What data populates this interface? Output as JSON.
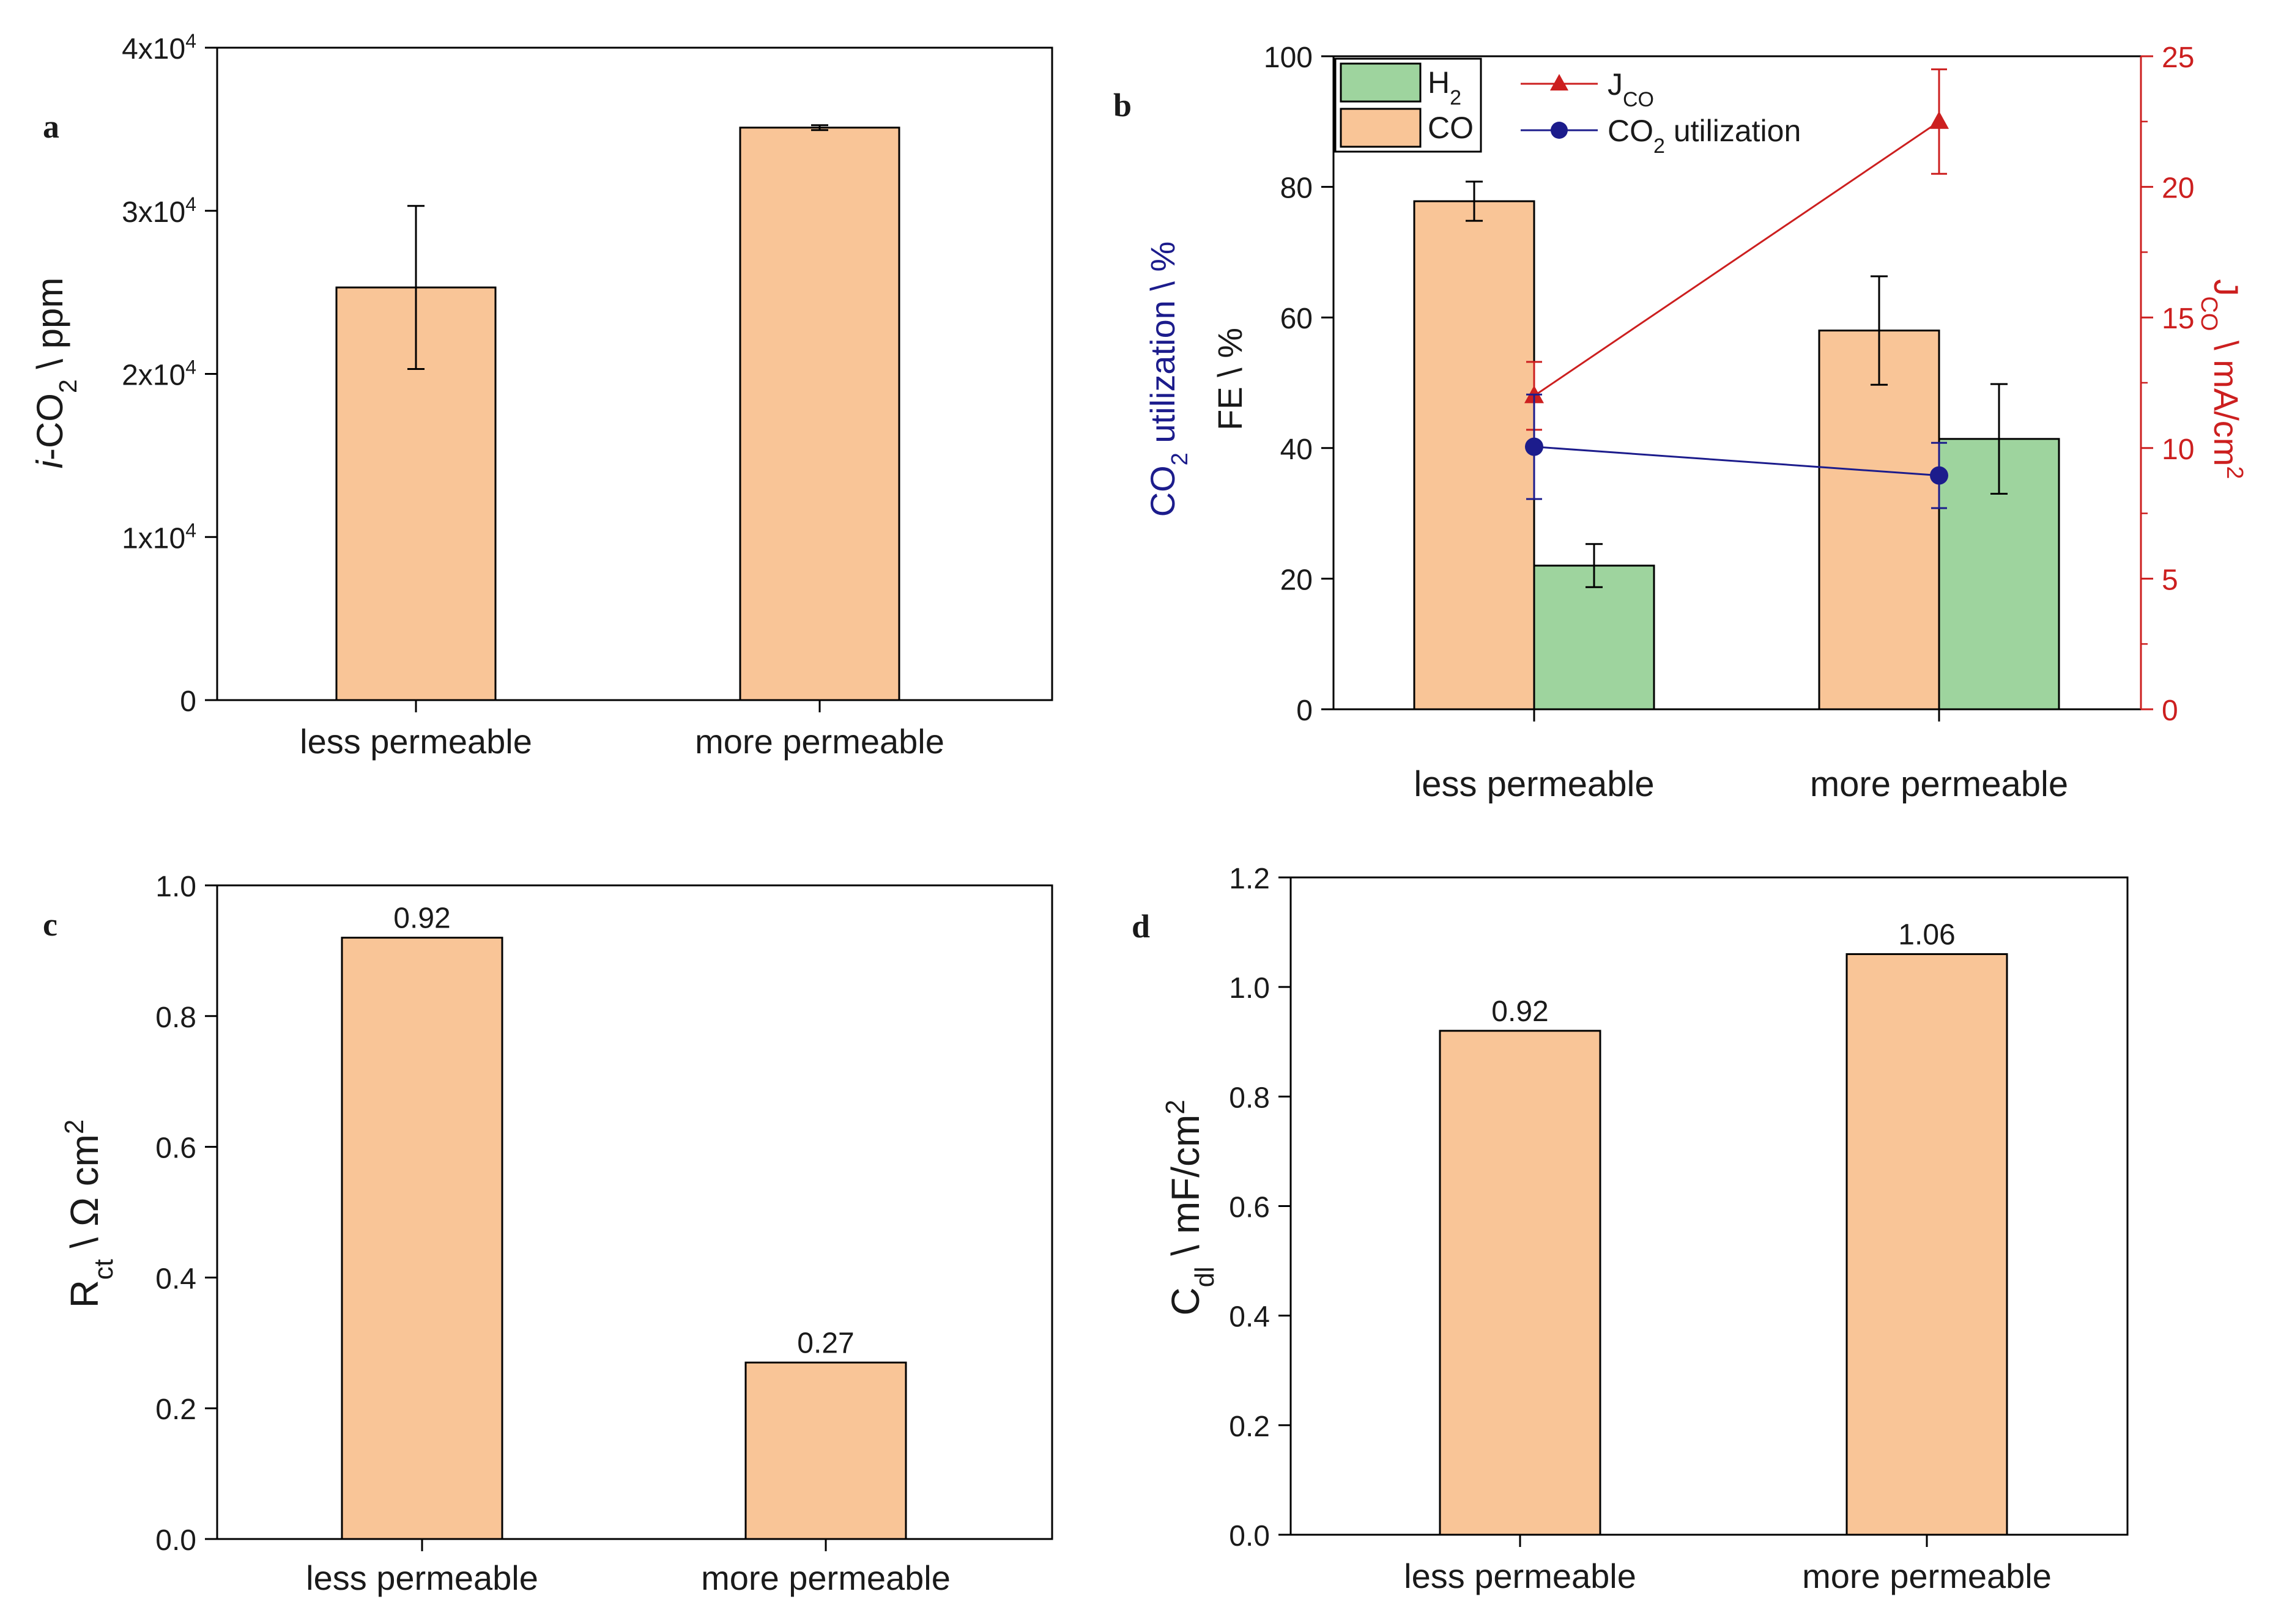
{
  "chart_data": [
    {
      "id": "a",
      "panel_label": "a",
      "type": "bar",
      "categories": [
        "less permeable",
        "more permeable"
      ],
      "values": [
        25300,
        35100
      ],
      "errors": [
        5000,
        150
      ],
      "ylim": [
        0,
        40000
      ],
      "yticks": [
        0,
        10000,
        20000,
        30000,
        40000
      ],
      "ytick_labels": [
        {
          "base": "0",
          "exp": ""
        },
        {
          "base": "1x10",
          "exp": "4"
        },
        {
          "base": "2x10",
          "exp": "4"
        },
        {
          "base": "3x10",
          "exp": "4"
        },
        {
          "base": "4x10",
          "exp": "4"
        }
      ],
      "ylabel": {
        "italic": "i",
        "text": "-CO",
        "sub": "2",
        "unit": " \\ ppm"
      },
      "bar_color": "#f9c597"
    },
    {
      "id": "b",
      "panel_label": "b",
      "type": "bar",
      "categories": [
        "less permeable",
        "more permeable"
      ],
      "series": [
        {
          "name": "CO",
          "values": [
            77.8,
            58.0
          ],
          "errors": [
            3.0,
            8.3
          ],
          "color": "#f9c597"
        },
        {
          "name": "H2",
          "values": [
            22.0,
            41.4
          ],
          "errors": [
            3.3,
            8.4
          ],
          "color": "#9ed49e"
        }
      ],
      "line_series": [
        {
          "name": "J_CO",
          "axis": "right",
          "values": [
            12.0,
            22.5
          ],
          "errors": [
            1.3,
            2.0
          ],
          "color": "#cc1f1f",
          "marker": "triangle"
        },
        {
          "name": "CO2 utilization",
          "axis": "left",
          "values": [
            40.2,
            35.8
          ],
          "errors": [
            8.0,
            5.0
          ],
          "color": "#1c1c8c",
          "marker": "circle"
        }
      ],
      "ylim": [
        0,
        100
      ],
      "yticks": [
        0,
        20,
        40,
        60,
        80,
        100
      ],
      "y2lim": [
        0,
        25
      ],
      "y2ticks": [
        0,
        5,
        10,
        15,
        20,
        25
      ],
      "ylabel_fe": "FE \\ %",
      "ylabel_util": {
        "pre": "CO",
        "sub": "2",
        "post": " utilization \\ %"
      },
      "ylabel_right": {
        "pre": "J",
        "sub": "CO",
        "post": " \\ mA/cm",
        "sup": "2"
      },
      "legend_bars": [
        {
          "pre": "H",
          "sub": "2"
        },
        {
          "pre": "CO",
          "sub": ""
        }
      ],
      "legend_lines": [
        {
          "pre": "J",
          "sub": "CO",
          "post": ""
        },
        {
          "pre": "CO",
          "sub": "2",
          "post": " utilization"
        }
      ]
    },
    {
      "id": "c",
      "panel_label": "c",
      "type": "bar",
      "categories": [
        "less permeable",
        "more permeable"
      ],
      "values": [
        0.92,
        0.27
      ],
      "value_labels": [
        "0.92",
        "0.27"
      ],
      "ylim": [
        0,
        1.0
      ],
      "yticks": [
        "0.0",
        "0.2",
        "0.4",
        "0.6",
        "0.8",
        "1.0"
      ],
      "ylabel": {
        "pre": "R",
        "sub": "ct",
        "post": " \\ Ω cm",
        "sup": "2"
      },
      "bar_color": "#f9c597"
    },
    {
      "id": "d",
      "panel_label": "d",
      "type": "bar",
      "categories": [
        "less permeable",
        "more permeable"
      ],
      "values": [
        0.92,
        1.06
      ],
      "value_labels": [
        "0.92",
        "1.06"
      ],
      "ylim": [
        0,
        1.2
      ],
      "yticks": [
        "0.0",
        "0.2",
        "0.4",
        "0.6",
        "0.8",
        "1.0",
        "1.2"
      ],
      "ylabel": {
        "pre": "C",
        "sub": "dl",
        "post": " \\ mF/cm",
        "sup": "2"
      },
      "bar_color": "#f9c597"
    }
  ]
}
